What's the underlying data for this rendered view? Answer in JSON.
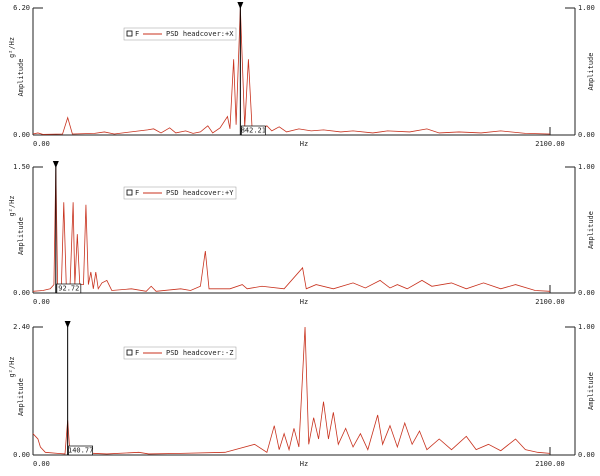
{
  "chart_data": [
    {
      "type": "line",
      "ylabel_unit": "g²/Hz",
      "ylabel": "Amplitude",
      "y2label": "Amplitude",
      "xlabel": "Hz",
      "legend_prefix": "F",
      "cursor": 842.21,
      "xlim": [
        0,
        2100
      ],
      "xticks": [
        {
          "value": 0,
          "label": "0.00"
        },
        {
          "value": 2100,
          "label": "2100.00"
        }
      ],
      "ylim": [
        0,
        6.2
      ],
      "yticks": [
        {
          "value": 0,
          "label": "0.00"
        },
        {
          "value": 6.2,
          "label": "6.20"
        }
      ],
      "y2lim": [
        0,
        1
      ],
      "y2ticks": [
        {
          "value": 0,
          "label": "0.00"
        },
        {
          "value": 1,
          "label": "1.00"
        }
      ],
      "series": [
        {
          "name": "PSD headcover:+X",
          "color": "#c8321e",
          "x": [
            0,
            20,
            40,
            120,
            141,
            160,
            250,
            290,
            330,
            465,
            490,
            520,
            555,
            580,
            620,
            650,
            680,
            710,
            730,
            760,
            790,
            800,
            815,
            825,
            842.21,
            860,
            875,
            890,
            920,
            950,
            970,
            1000,
            1030,
            1080,
            1130,
            1180,
            1250,
            1300,
            1380,
            1440,
            1530,
            1600,
            1650,
            1730,
            1820,
            1900,
            2000,
            2100
          ],
          "values": [
            0.05,
            0.1,
            0.03,
            0.05,
            0.85,
            0.05,
            0.08,
            0.15,
            0.05,
            0.25,
            0.3,
            0.1,
            0.35,
            0.1,
            0.2,
            0.08,
            0.15,
            0.45,
            0.1,
            0.35,
            0.9,
            0.3,
            3.7,
            0.5,
            6.2,
            0.4,
            3.7,
            0.3,
            0.2,
            0.45,
            0.2,
            0.4,
            0.15,
            0.3,
            0.2,
            0.25,
            0.15,
            0.2,
            0.1,
            0.2,
            0.15,
            0.3,
            0.1,
            0.15,
            0.1,
            0.2,
            0.08,
            0.05
          ]
        }
      ]
    },
    {
      "type": "line",
      "ylabel_unit": "g²/Hz",
      "ylabel": "Amplitude",
      "y2label": "Amplitude",
      "xlabel": "Hz",
      "legend_prefix": "F",
      "cursor": 92.72,
      "xlim": [
        0,
        2100
      ],
      "xticks": [
        {
          "value": 0,
          "label": "0.00"
        },
        {
          "value": 2100,
          "label": "2100.00"
        }
      ],
      "ylim": [
        0,
        1.5
      ],
      "yticks": [
        {
          "value": 0,
          "label": "0.00"
        },
        {
          "value": 1.5,
          "label": "1.50"
        }
      ],
      "y2lim": [
        0,
        1
      ],
      "y2ticks": [
        {
          "value": 0,
          "label": "0.00"
        },
        {
          "value": 1,
          "label": "1.00"
        }
      ],
      "series": [
        {
          "name": "PSD headcover:+Y",
          "color": "#c8321e",
          "x": [
            0,
            40,
            70,
            85,
            92.72,
            100,
            115,
            125,
            135,
            150,
            163,
            170,
            180,
            190,
            205,
            215,
            225,
            235,
            245,
            255,
            265,
            280,
            300,
            320,
            400,
            460,
            480,
            500,
            600,
            640,
            680,
            700,
            715,
            800,
            850,
            870,
            930,
            1020,
            1095,
            1110,
            1150,
            1220,
            1300,
            1350,
            1410,
            1450,
            1480,
            1520,
            1580,
            1620,
            1700,
            1760,
            1830,
            1900,
            1960,
            2040,
            2100
          ],
          "values": [
            0.02,
            0.03,
            0.05,
            0.1,
            1.5,
            0.1,
            0.05,
            1.08,
            0.1,
            0.05,
            1.08,
            0.1,
            0.7,
            0.1,
            0.1,
            1.05,
            0.1,
            0.25,
            0.05,
            0.25,
            0.05,
            0.12,
            0.15,
            0.03,
            0.05,
            0.02,
            0.08,
            0.02,
            0.05,
            0.03,
            0.08,
            0.5,
            0.05,
            0.05,
            0.1,
            0.05,
            0.08,
            0.05,
            0.3,
            0.05,
            0.1,
            0.05,
            0.12,
            0.06,
            0.15,
            0.06,
            0.1,
            0.05,
            0.15,
            0.08,
            0.12,
            0.05,
            0.12,
            0.05,
            0.1,
            0.03,
            0.02
          ]
        }
      ]
    },
    {
      "type": "line",
      "ylabel_unit": "g²/Hz",
      "ylabel": "Amplitude",
      "y2label": "Amplitude",
      "xlabel": "Hz",
      "legend_prefix": "F",
      "cursor": 140.77,
      "xlim": [
        0,
        2100
      ],
      "xticks": [
        {
          "value": 0,
          "label": "0.00"
        },
        {
          "value": 2100,
          "label": "2100.00"
        }
      ],
      "ylim": [
        0,
        2.4
      ],
      "yticks": [
        {
          "value": 0,
          "label": "0.00"
        },
        {
          "value": 2.4,
          "label": "2.40"
        }
      ],
      "y2lim": [
        0,
        1
      ],
      "y2ticks": [
        {
          "value": 0,
          "label": "0.00"
        },
        {
          "value": 1,
          "label": "1.00"
        }
      ],
      "series": [
        {
          "name": "PSD headcover:-Z",
          "color": "#c8321e",
          "x": [
            0,
            10,
            20,
            30,
            50,
            100,
            130,
            140.77,
            150,
            300,
            430,
            470,
            600,
            780,
            900,
            950,
            980,
            1000,
            1020,
            1040,
            1060,
            1080,
            1105,
            1120,
            1140,
            1160,
            1180,
            1200,
            1220,
            1240,
            1270,
            1300,
            1330,
            1360,
            1400,
            1420,
            1450,
            1480,
            1510,
            1540,
            1570,
            1600,
            1650,
            1700,
            1760,
            1800,
            1850,
            1900,
            1960,
            2000,
            2050,
            2100
          ],
          "values": [
            0.4,
            0.35,
            0.3,
            0.15,
            0.05,
            0.03,
            0.02,
            0.65,
            0.05,
            0.02,
            0.05,
            0.02,
            0.03,
            0.05,
            0.2,
            0.05,
            0.55,
            0.1,
            0.4,
            0.1,
            0.5,
            0.15,
            2.4,
            0.2,
            0.7,
            0.3,
            1.0,
            0.3,
            0.8,
            0.2,
            0.5,
            0.15,
            0.4,
            0.1,
            0.75,
            0.2,
            0.55,
            0.15,
            0.6,
            0.2,
            0.45,
            0.1,
            0.3,
            0.1,
            0.35,
            0.1,
            0.2,
            0.08,
            0.3,
            0.1,
            0.05,
            0.03
          ]
        }
      ]
    }
  ]
}
